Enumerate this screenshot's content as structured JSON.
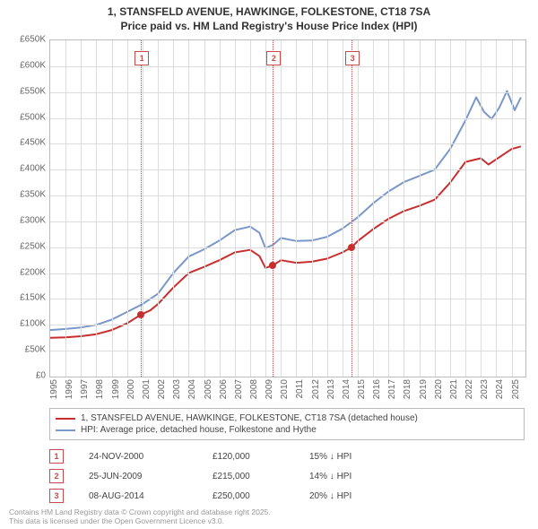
{
  "title_line1": "1, STANSFELD AVENUE, HAWKINGE, FOLKESTONE, CT18 7SA",
  "title_line2": "Price paid vs. HM Land Registry's House Price Index (HPI)",
  "chart": {
    "type": "line",
    "background_color": "#ffffff",
    "grid_color": "#dddddd",
    "axis_color": "#bbbbbb",
    "y": {
      "min": 0,
      "max": 650000,
      "step": 50000,
      "labels": [
        "£0",
        "£50K",
        "£100K",
        "£150K",
        "£200K",
        "£250K",
        "£300K",
        "£350K",
        "£400K",
        "£450K",
        "£500K",
        "£550K",
        "£600K",
        "£650K"
      ],
      "label_color": "#666666",
      "label_fontsize": 10
    },
    "x": {
      "min": 1995,
      "max": 2025.9,
      "years": [
        1995,
        1996,
        1997,
        1998,
        1999,
        2000,
        2001,
        2002,
        2003,
        2004,
        2005,
        2006,
        2007,
        2008,
        2009,
        2010,
        2011,
        2012,
        2013,
        2014,
        2015,
        2016,
        2017,
        2018,
        2019,
        2020,
        2021,
        2022,
        2023,
        2024,
        2025
      ],
      "label_color": "#666666",
      "label_fontsize": 10
    },
    "series_property": {
      "label": "1, STANSFELD AVENUE, HAWKINGE, FOLKESTONE, CT18 7SA (detached house)",
      "color": "#c72f2f",
      "line_width": 2,
      "points": [
        [
          1995.0,
          75000
        ],
        [
          1996.0,
          76000
        ],
        [
          1997.0,
          78000
        ],
        [
          1998.0,
          82000
        ],
        [
          1999.0,
          90000
        ],
        [
          2000.0,
          103000
        ],
        [
          2000.9,
          120000
        ],
        [
          2001.5,
          128000
        ],
        [
          2002.0,
          140000
        ],
        [
          2003.0,
          172000
        ],
        [
          2004.0,
          200000
        ],
        [
          2005.0,
          212000
        ],
        [
          2006.0,
          225000
        ],
        [
          2007.0,
          240000
        ],
        [
          2008.0,
          245000
        ],
        [
          2008.6,
          233000
        ],
        [
          2009.0,
          210000
        ],
        [
          2009.48,
          215000
        ],
        [
          2010.0,
          225000
        ],
        [
          2011.0,
          220000
        ],
        [
          2012.0,
          222000
        ],
        [
          2013.0,
          228000
        ],
        [
          2014.0,
          240000
        ],
        [
          2014.6,
          250000
        ],
        [
          2015.0,
          262000
        ],
        [
          2016.0,
          285000
        ],
        [
          2017.0,
          305000
        ],
        [
          2018.0,
          320000
        ],
        [
          2019.0,
          330000
        ],
        [
          2020.0,
          342000
        ],
        [
          2021.0,
          375000
        ],
        [
          2022.0,
          415000
        ],
        [
          2023.0,
          422000
        ],
        [
          2023.5,
          410000
        ],
        [
          2024.0,
          420000
        ],
        [
          2025.0,
          440000
        ],
        [
          2025.6,
          445000
        ]
      ]
    },
    "series_hpi": {
      "label": "HPI: Average price, detached house, Folkestone and Hythe",
      "color": "#7a97c9",
      "line_width": 2,
      "points": [
        [
          1995.0,
          90000
        ],
        [
          1996.0,
          92000
        ],
        [
          1997.0,
          95000
        ],
        [
          1998.0,
          100000
        ],
        [
          1999.0,
          110000
        ],
        [
          2000.0,
          125000
        ],
        [
          2001.0,
          140000
        ],
        [
          2002.0,
          160000
        ],
        [
          2003.0,
          200000
        ],
        [
          2004.0,
          232000
        ],
        [
          2005.0,
          246000
        ],
        [
          2006.0,
          263000
        ],
        [
          2007.0,
          283000
        ],
        [
          2008.0,
          290000
        ],
        [
          2008.6,
          278000
        ],
        [
          2009.0,
          248000
        ],
        [
          2009.5,
          255000
        ],
        [
          2010.0,
          268000
        ],
        [
          2011.0,
          262000
        ],
        [
          2012.0,
          263000
        ],
        [
          2013.0,
          270000
        ],
        [
          2014.0,
          286000
        ],
        [
          2015.0,
          308000
        ],
        [
          2016.0,
          335000
        ],
        [
          2017.0,
          358000
        ],
        [
          2018.0,
          376000
        ],
        [
          2019.0,
          388000
        ],
        [
          2020.0,
          400000
        ],
        [
          2021.0,
          440000
        ],
        [
          2022.0,
          495000
        ],
        [
          2022.7,
          540000
        ],
        [
          2023.2,
          512000
        ],
        [
          2023.7,
          498000
        ],
        [
          2024.2,
          520000
        ],
        [
          2024.7,
          552000
        ],
        [
          2025.2,
          515000
        ],
        [
          2025.6,
          540000
        ]
      ]
    },
    "markers": [
      {
        "n": "1",
        "year": 2000.9
      },
      {
        "n": "2",
        "year": 2009.48
      },
      {
        "n": "3",
        "year": 2014.6
      }
    ],
    "sale_points": [
      {
        "year": 2000.9,
        "price": 120000
      },
      {
        "year": 2009.48,
        "price": 215000
      },
      {
        "year": 2014.6,
        "price": 250000
      }
    ]
  },
  "legend": {
    "rows": [
      {
        "color": "#c72f2f",
        "label_bind": "chart.series_property.label"
      },
      {
        "color": "#7a97c9",
        "label_bind": "chart.series_hpi.label"
      }
    ]
  },
  "sales": [
    {
      "n": "1",
      "date": "24-NOV-2000",
      "price": "£120,000",
      "delta": "15% ↓ HPI"
    },
    {
      "n": "2",
      "date": "25-JUN-2009",
      "price": "£215,000",
      "delta": "14% ↓ HPI"
    },
    {
      "n": "3",
      "date": "08-AUG-2014",
      "price": "£250,000",
      "delta": "20% ↓ HPI"
    }
  ],
  "footer_line1": "Contains HM Land Registry data © Crown copyright and database right 2025.",
  "footer_line2": "This data is licensed under the Open Government Licence v3.0."
}
